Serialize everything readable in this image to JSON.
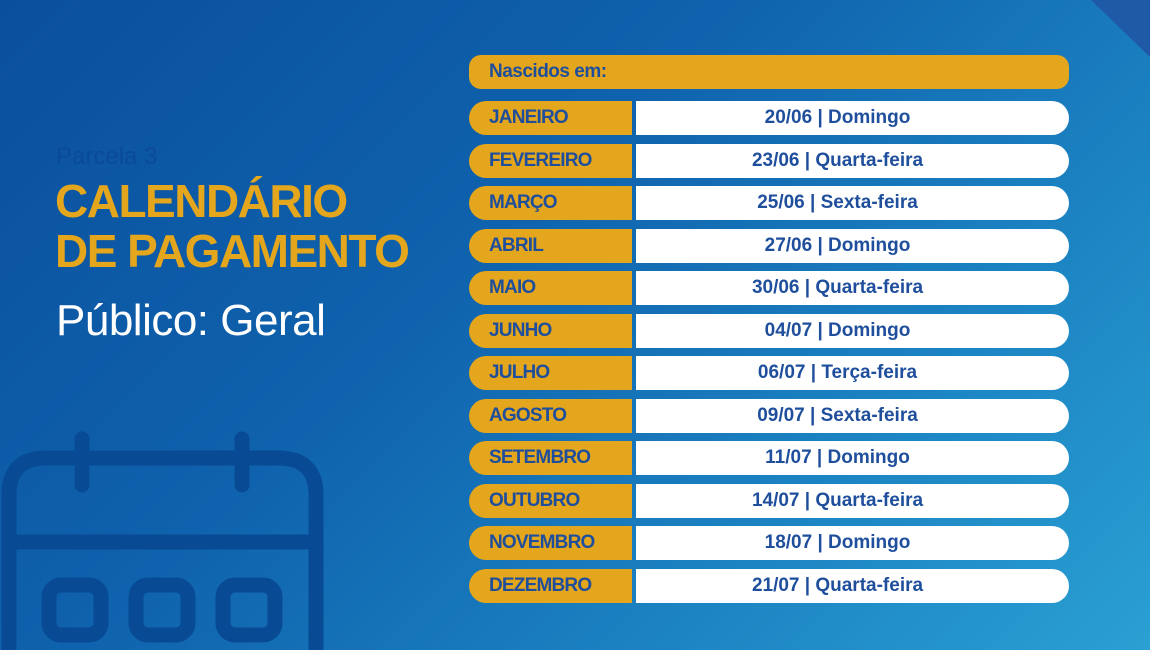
{
  "colors": {
    "accent": "#e3a61c",
    "text_blue": "#1f4f9c",
    "background": "#0f62ad"
  },
  "header": {
    "subtitle": "Parcela 3",
    "title_line1": "CALENDÁRIO",
    "title_line2": "DE PAGAMENTO",
    "audience": "Público: Geral"
  },
  "table": {
    "header": "Nascidos em:",
    "rows": [
      {
        "month": "JANEIRO",
        "date": "20/06 | Domingo"
      },
      {
        "month": "FEVEREIRO",
        "date": "23/06 | Quarta-feira"
      },
      {
        "month": "MARÇO",
        "date": "25/06 | Sexta-feira"
      },
      {
        "month": "ABRIL",
        "date": "27/06 | Domingo"
      },
      {
        "month": "MAIO",
        "date": "30/06 | Quarta-feira"
      },
      {
        "month": "JUNHO",
        "date": "04/07 | Domingo"
      },
      {
        "month": "JULHO",
        "date": "06/07 | Terça-feira"
      },
      {
        "month": "AGOSTO",
        "date": "09/07 | Sexta-feira"
      },
      {
        "month": "SETEMBRO",
        "date": "11/07 | Domingo"
      },
      {
        "month": "OUTUBRO",
        "date": "14/07 | Quarta-feira"
      },
      {
        "month": "NOVEMBRO",
        "date": "18/07 | Domingo"
      },
      {
        "month": "DEZEMBRO",
        "date": "21/07 | Quarta-feira"
      }
    ]
  },
  "decor": {
    "icon": "calendar-icon"
  }
}
